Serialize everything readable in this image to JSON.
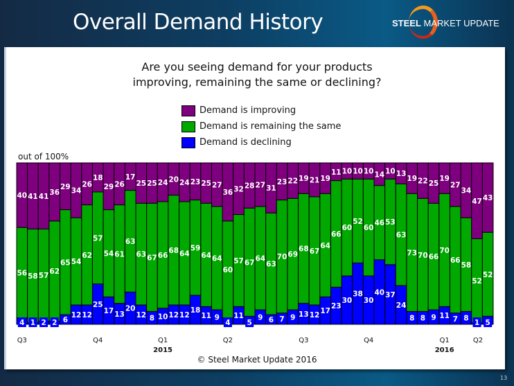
{
  "slide": {
    "title": "Overall Demand History",
    "logo": {
      "bold": "STEEL",
      "mid": " MARKET",
      "light": " UPDATE"
    },
    "copyright": "© Steel Market Update 2016",
    "page_number": "13"
  },
  "chart_data": {
    "type": "bar",
    "stacked": true,
    "title": "Are you seeing demand for your products improving, remaining the same or declining?",
    "title_lines": [
      "Are you seeing demand for your products",
      "improving, remaining the same or declining?"
    ],
    "ylabel": "out of 100%",
    "ylim": [
      0,
      100
    ],
    "grid": false,
    "legend_position": "top-center",
    "quarter_ticks": [
      {
        "label": "Q3",
        "bar_index": 0,
        "year": ""
      },
      {
        "label": "Q4",
        "bar_index": 7,
        "year": ""
      },
      {
        "label": "Q1",
        "bar_index": 13,
        "year": "2015"
      },
      {
        "label": "Q2",
        "bar_index": 19,
        "year": ""
      },
      {
        "label": "Q3",
        "bar_index": 26,
        "year": ""
      },
      {
        "label": "Q4",
        "bar_index": 32,
        "year": ""
      },
      {
        "label": "Q1",
        "bar_index": 39,
        "year": "2016"
      },
      {
        "label": "Q2",
        "bar_index": 45,
        "year": ""
      }
    ],
    "series": [
      {
        "name": "Demand is declining",
        "color": "#0000ff",
        "values": [
          4,
          1,
          2,
          2,
          6,
          12,
          12,
          25,
          17,
          13,
          20,
          12,
          8,
          10,
          12,
          12,
          18,
          11,
          9,
          4,
          11,
          5,
          9,
          6,
          7,
          9,
          13,
          12,
          17,
          23,
          30,
          38,
          30,
          40,
          37,
          24,
          8,
          8,
          9,
          11,
          7,
          8,
          1,
          5
        ]
      },
      {
        "name": "Demand is remaining the same",
        "color": "#00a800",
        "values": [
          56,
          58,
          57,
          62,
          65,
          54,
          62,
          57,
          54,
          61,
          63,
          63,
          67,
          66,
          68,
          64,
          59,
          64,
          64,
          60,
          57,
          67,
          64,
          63,
          70,
          69,
          68,
          67,
          64,
          66,
          60,
          52,
          60,
          46,
          53,
          63,
          73,
          70,
          66,
          70,
          66,
          58,
          52,
          52
        ]
      },
      {
        "name": "Demand is improving",
        "color": "#7f007f",
        "values": [
          40,
          41,
          41,
          36,
          29,
          34,
          26,
          18,
          29,
          26,
          17,
          25,
          25,
          24,
          20,
          24,
          23,
          25,
          27,
          36,
          32,
          28,
          27,
          31,
          23,
          22,
          19,
          21,
          19,
          11,
          10,
          10,
          10,
          14,
          10,
          13,
          19,
          22,
          25,
          19,
          27,
          34,
          47,
          43
        ]
      }
    ],
    "legend": [
      {
        "name": "Demand is improving",
        "color": "#7f007f"
      },
      {
        "name": "Demand is remaining the same",
        "color": "#00a800"
      },
      {
        "name": "Demand is declining",
        "color": "#0000ff"
      }
    ]
  }
}
